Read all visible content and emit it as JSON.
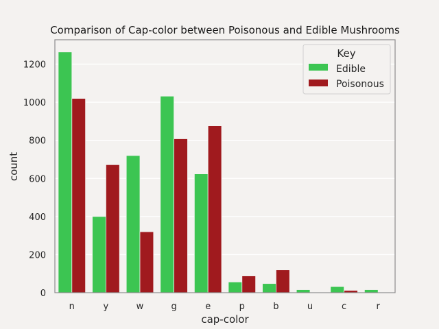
{
  "chart_data": {
    "type": "bar",
    "title": "Comparison of Cap-color between Poisonous and Edible Mushrooms",
    "xlabel": "cap-color",
    "ylabel": "count",
    "categories": [
      "n",
      "y",
      "w",
      "g",
      "e",
      "p",
      "b",
      "u",
      "c",
      "r"
    ],
    "series": [
      {
        "name": "Edible",
        "color": "#3cc552",
        "values": [
          1264,
          400,
          720,
          1032,
          624,
          56,
          48,
          16,
          32,
          16
        ]
      },
      {
        "name": "Poisonous",
        "color": "#a01a1e",
        "values": [
          1020,
          672,
          320,
          808,
          876,
          88,
          120,
          0,
          12,
          0
        ]
      }
    ],
    "ylim": [
      0,
      1328
    ],
    "yticks": [
      0,
      200,
      400,
      600,
      800,
      1000,
      1200
    ],
    "grid": true,
    "legend": {
      "title": "Key",
      "position": "top-right"
    }
  }
}
